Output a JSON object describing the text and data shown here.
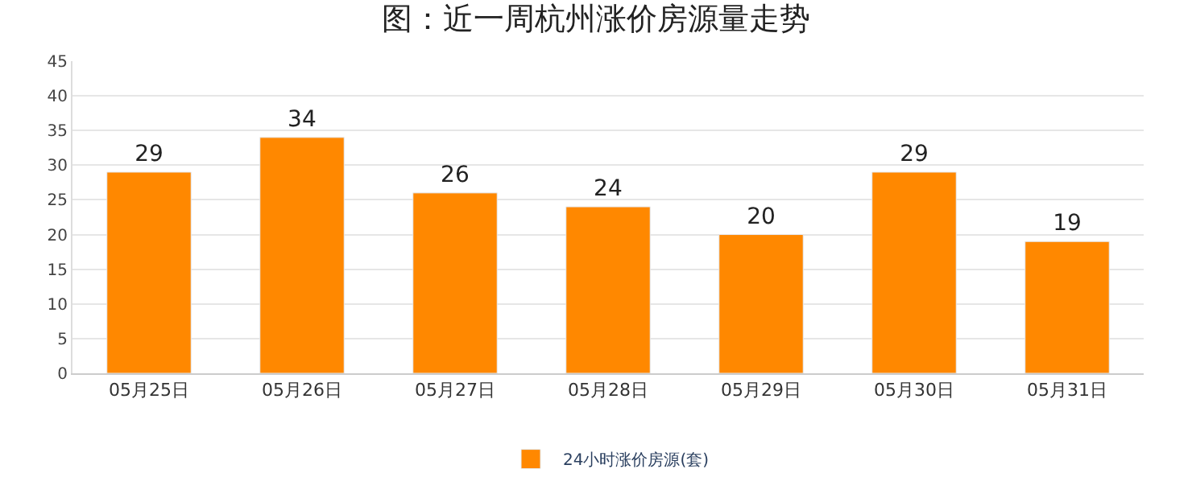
{
  "chart_data": {
    "type": "bar",
    "title": "图：近一周杭州涨价房源量走势",
    "categories": [
      "05月25日",
      "05月26日",
      "05月27日",
      "05月28日",
      "05月29日",
      "05月30日",
      "05月31日"
    ],
    "series": [
      {
        "name": "24小时涨价房源(套)",
        "color": "#ff8800",
        "values": [
          29,
          34,
          26,
          24,
          20,
          29,
          19
        ]
      }
    ],
    "ylim": [
      0,
      45
    ],
    "yticks": [
      0,
      5,
      10,
      15,
      20,
      25,
      30,
      35,
      40,
      45
    ],
    "grid": "y",
    "legend": "bottom",
    "data_labels": true
  }
}
